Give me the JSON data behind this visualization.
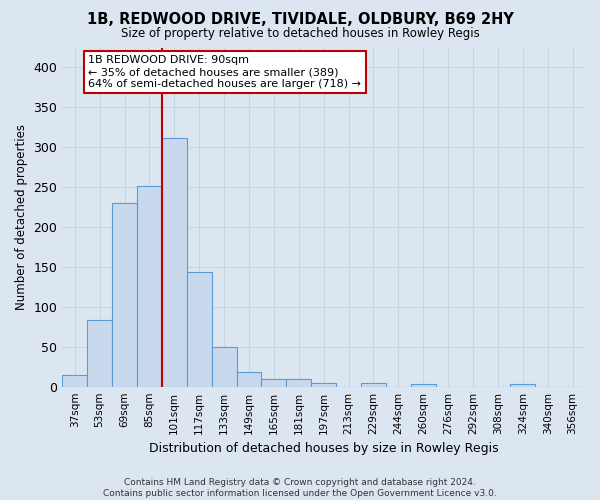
{
  "title": "1B, REDWOOD DRIVE, TIVIDALE, OLDBURY, B69 2HY",
  "subtitle": "Size of property relative to detached houses in Rowley Regis",
  "xlabel": "Distribution of detached houses by size in Rowley Regis",
  "ylabel": "Number of detached properties",
  "footnote": "Contains HM Land Registry data © Crown copyright and database right 2024.\nContains public sector information licensed under the Open Government Licence v3.0.",
  "bin_labels": [
    "37sqm",
    "53sqm",
    "69sqm",
    "85sqm",
    "101sqm",
    "117sqm",
    "133sqm",
    "149sqm",
    "165sqm",
    "181sqm",
    "197sqm",
    "213sqm",
    "229sqm",
    "244sqm",
    "260sqm",
    "276sqm",
    "292sqm",
    "308sqm",
    "324sqm",
    "340sqm",
    "356sqm"
  ],
  "bar_values": [
    15,
    83,
    230,
    251,
    311,
    144,
    50,
    19,
    9,
    10,
    5,
    0,
    4,
    0,
    3,
    0,
    0,
    0,
    3,
    0,
    0
  ],
  "bar_color": "#c9d9ed",
  "bar_edge_color": "#5b9bd5",
  "vline_color": "#c00000",
  "annotation_text": "1B REDWOOD DRIVE: 90sqm\n← 35% of detached houses are smaller (389)\n64% of semi-detached houses are larger (718) →",
  "annotation_box_color": "#ffffff",
  "annotation_box_edge_color": "#c00000",
  "ylim": [
    0,
    425
  ],
  "yticks": [
    0,
    50,
    100,
    150,
    200,
    250,
    300,
    350,
    400
  ],
  "grid_color": "#c8d4e3",
  "background_color": "#dce6f1",
  "plot_bg_color": "#dce6f1"
}
